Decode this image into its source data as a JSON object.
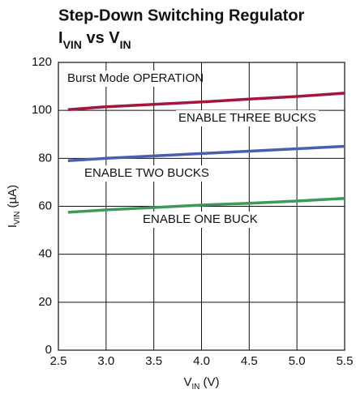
{
  "chart_data": {
    "type": "line",
    "title": "Step-Down Switching Regulator",
    "subtitle": [
      {
        "text": "I"
      },
      {
        "text": "VIN",
        "sub": true
      },
      {
        "text": " vs V"
      },
      {
        "text": "IN",
        "sub": true
      }
    ],
    "x_label": [
      {
        "text": "V"
      },
      {
        "text": "IN",
        "sub": true
      },
      {
        "text": " (V)"
      }
    ],
    "y_label": [
      {
        "text": "I"
      },
      {
        "text": "VIN",
        "sub": true
      },
      {
        "text": " (µA)"
      }
    ],
    "annotation": "Burst Mode OPERATION",
    "x": [
      2.6,
      3.0,
      3.5,
      4.0,
      4.5,
      5.0,
      5.5
    ],
    "series": [
      {
        "name": "ENABLE THREE BUCKS",
        "color": "#a3173c",
        "values": [
          100.3,
          101.5,
          102.5,
          103.5,
          104.7,
          105.8,
          107.2
        ]
      },
      {
        "name": "ENABLE TWO BUCKS",
        "color": "#4a5fb2",
        "values": [
          79,
          80,
          81,
          82,
          83,
          84,
          85
        ]
      },
      {
        "name": "ENABLE ONE BUCK",
        "color": "#3b9a5a",
        "values": [
          57.5,
          58.5,
          59.5,
          60.5,
          61.3,
          62.2,
          63.3
        ]
      }
    ],
    "xlim": [
      2.5,
      5.5
    ],
    "xticks": [
      2.5,
      {
        "value": 3,
        "label": "3.0"
      },
      3.5,
      {
        "value": 4,
        "label": "4.0"
      },
      4.5,
      {
        "value": 5,
        "label": "5.0"
      },
      5.5
    ],
    "ylim": [
      0,
      120
    ],
    "yticks": [
      0,
      20,
      40,
      60,
      80,
      100,
      120
    ],
    "grid": true
  }
}
